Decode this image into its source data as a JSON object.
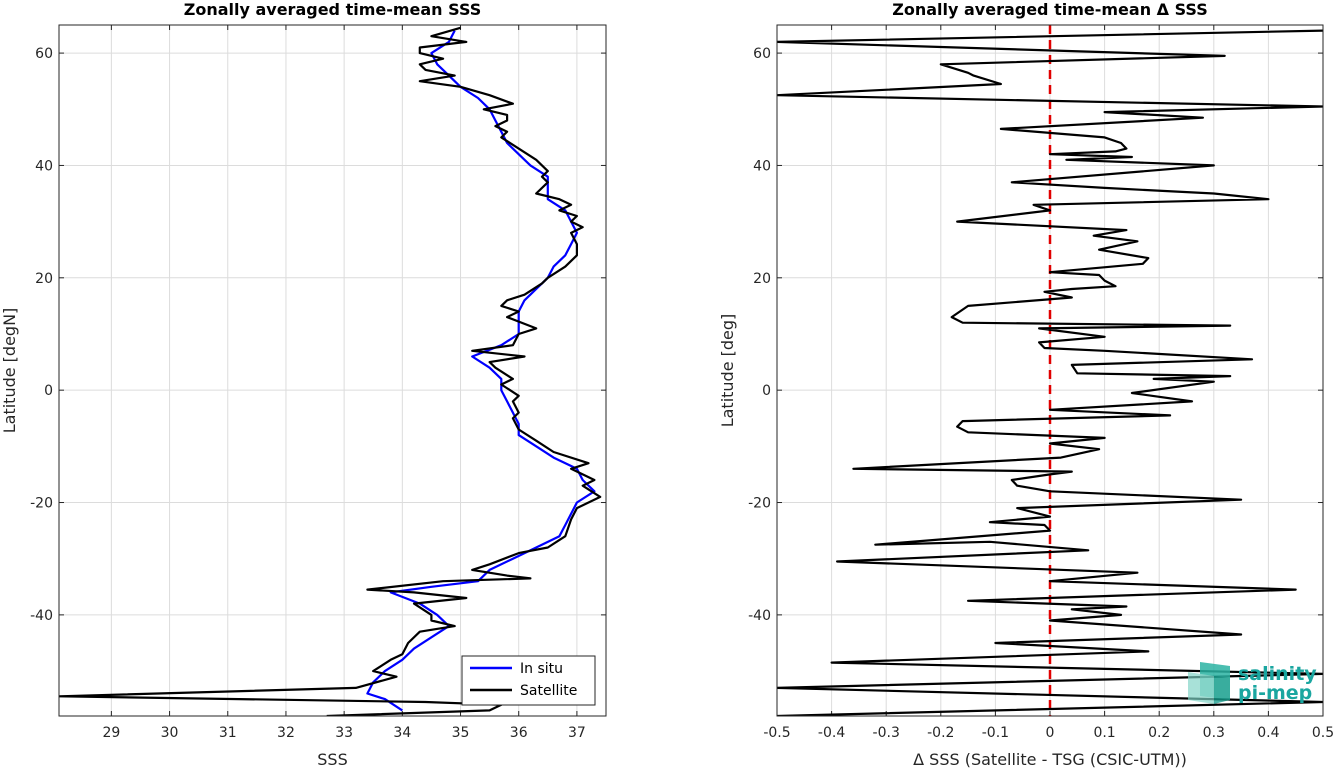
{
  "colors": {
    "insitu": "#0000ff",
    "satellite": "#000000",
    "zero_line": "#e00000",
    "grid": "#dcdcdc",
    "axes": "#262626",
    "logo": "#1aa6a0"
  },
  "logo": {
    "icon": "salinity-pi-mep-logo-icon",
    "line1": "salinity",
    "line2": "pi-mep"
  },
  "chart_data": [
    {
      "type": "line",
      "title": "Zonally averaged time-mean SSS",
      "xlabel": "SSS",
      "ylabel": "Latitude [degN]",
      "xlim": [
        28.1,
        37.5
      ],
      "ylim": [
        -58,
        65
      ],
      "xticks": [
        29,
        30,
        31,
        32,
        33,
        34,
        35,
        36,
        37
      ],
      "yticks": [
        -40,
        -20,
        0,
        20,
        40,
        60
      ],
      "xtick_labels": [
        "29",
        "30",
        "31",
        "32",
        "33",
        "34",
        "35",
        "36",
        "37"
      ],
      "ytick_labels": [
        "-40",
        "-20",
        "0",
        "20",
        "40",
        "60"
      ],
      "grid": true,
      "legend": {
        "position": "bottom-right",
        "entries": [
          "In situ",
          "Satellite"
        ]
      },
      "series": [
        {
          "name": "In situ",
          "color": "#0000ff",
          "points": [
            [
              34.9,
              64
            ],
            [
              34.8,
              62
            ],
            [
              34.5,
              60
            ],
            [
              34.6,
              58
            ],
            [
              34.8,
              56
            ],
            [
              35.0,
              54
            ],
            [
              35.3,
              52
            ],
            [
              35.5,
              50
            ],
            [
              35.6,
              48
            ],
            [
              35.7,
              46
            ],
            [
              35.8,
              44
            ],
            [
              36.0,
              42
            ],
            [
              36.2,
              40
            ],
            [
              36.5,
              38
            ],
            [
              36.5,
              36
            ],
            [
              36.5,
              34
            ],
            [
              36.8,
              32
            ],
            [
              36.9,
              30
            ],
            [
              37.0,
              28
            ],
            [
              36.9,
              26
            ],
            [
              36.8,
              24
            ],
            [
              36.6,
              22
            ],
            [
              36.5,
              20
            ],
            [
              36.3,
              18
            ],
            [
              36.1,
              16
            ],
            [
              36.0,
              14
            ],
            [
              36.0,
              12
            ],
            [
              36.0,
              10
            ],
            [
              35.7,
              8
            ],
            [
              35.2,
              6
            ],
            [
              35.5,
              4
            ],
            [
              35.7,
              2
            ],
            [
              35.7,
              0
            ],
            [
              35.8,
              -2
            ],
            [
              35.9,
              -4
            ],
            [
              36.0,
              -6
            ],
            [
              36.0,
              -8
            ],
            [
              36.3,
              -10
            ],
            [
              36.6,
              -12
            ],
            [
              37.0,
              -14
            ],
            [
              37.1,
              -16
            ],
            [
              37.3,
              -18
            ],
            [
              37.0,
              -20
            ],
            [
              36.9,
              -22
            ],
            [
              36.8,
              -24
            ],
            [
              36.7,
              -26
            ],
            [
              36.3,
              -28
            ],
            [
              35.9,
              -30
            ],
            [
              35.5,
              -32
            ],
            [
              35.3,
              -34
            ],
            [
              34.5,
              -35
            ],
            [
              33.8,
              -36
            ],
            [
              34.3,
              -38
            ],
            [
              34.6,
              -40
            ],
            [
              34.8,
              -42
            ],
            [
              34.5,
              -44
            ],
            [
              34.2,
              -46
            ],
            [
              34.0,
              -48
            ],
            [
              33.7,
              -50
            ],
            [
              33.5,
              -52
            ],
            [
              33.4,
              -54
            ],
            [
              33.7,
              -55
            ],
            [
              34.0,
              -57
            ]
          ]
        },
        {
          "name": "Satellite",
          "color": "#000000",
          "points": [
            [
              35.0,
              64.5
            ],
            [
              34.5,
              63
            ],
            [
              35.1,
              62
            ],
            [
              34.3,
              61
            ],
            [
              34.3,
              60
            ],
            [
              34.7,
              59
            ],
            [
              34.3,
              58
            ],
            [
              34.4,
              57
            ],
            [
              34.9,
              56
            ],
            [
              34.3,
              55
            ],
            [
              35.0,
              54
            ],
            [
              35.5,
              52.5
            ],
            [
              35.9,
              51
            ],
            [
              35.4,
              50
            ],
            [
              35.8,
              49
            ],
            [
              35.8,
              48
            ],
            [
              35.6,
              47
            ],
            [
              35.8,
              46
            ],
            [
              35.7,
              45
            ],
            [
              36.0,
              43
            ],
            [
              36.3,
              41
            ],
            [
              36.5,
              39
            ],
            [
              36.4,
              38
            ],
            [
              36.5,
              37
            ],
            [
              36.3,
              35
            ],
            [
              36.7,
              34
            ],
            [
              36.9,
              33
            ],
            [
              36.7,
              32
            ],
            [
              37.0,
              31
            ],
            [
              36.9,
              30
            ],
            [
              37.1,
              29
            ],
            [
              36.9,
              28
            ],
            [
              37.0,
              26
            ],
            [
              37.0,
              24
            ],
            [
              36.8,
              22
            ],
            [
              36.5,
              20
            ],
            [
              36.4,
              19
            ],
            [
              36.1,
              17
            ],
            [
              35.8,
              16
            ],
            [
              35.7,
              15
            ],
            [
              36.0,
              14
            ],
            [
              35.8,
              13
            ],
            [
              36.3,
              11
            ],
            [
              36.0,
              10
            ],
            [
              35.9,
              8
            ],
            [
              35.2,
              7
            ],
            [
              36.1,
              6
            ],
            [
              35.5,
              5
            ],
            [
              35.6,
              4
            ],
            [
              35.9,
              2
            ],
            [
              35.7,
              1
            ],
            [
              36.0,
              -1
            ],
            [
              35.9,
              -2
            ],
            [
              36.0,
              -4
            ],
            [
              35.9,
              -5
            ],
            [
              36.0,
              -7
            ],
            [
              36.3,
              -9
            ],
            [
              36.6,
              -11
            ],
            [
              37.2,
              -13
            ],
            [
              36.9,
              -14
            ],
            [
              37.3,
              -16
            ],
            [
              37.1,
              -17
            ],
            [
              37.4,
              -19
            ],
            [
              37.0,
              -21
            ],
            [
              36.9,
              -23
            ],
            [
              36.8,
              -26
            ],
            [
              36.5,
              -28
            ],
            [
              36.0,
              -29
            ],
            [
              35.5,
              -31
            ],
            [
              35.2,
              -32
            ],
            [
              35.8,
              -33
            ],
            [
              36.2,
              -33.5
            ],
            [
              34.7,
              -34
            ],
            [
              33.4,
              -35.5
            ],
            [
              34.2,
              -36
            ],
            [
              35.1,
              -37
            ],
            [
              34.2,
              -38
            ],
            [
              34.5,
              -40
            ],
            [
              34.5,
              -41
            ],
            [
              34.9,
              -42
            ],
            [
              34.3,
              -43
            ],
            [
              34.1,
              -45
            ],
            [
              34.0,
              -47
            ],
            [
              33.8,
              -48
            ],
            [
              33.5,
              -50
            ],
            [
              33.9,
              -51
            ],
            [
              33.2,
              -53
            ],
            [
              28.1,
              -54.5
            ],
            [
              34.4,
              -55.5
            ],
            [
              35.7,
              -56
            ],
            [
              35.5,
              -57
            ],
            [
              32.7,
              -58
            ]
          ]
        }
      ]
    },
    {
      "type": "line",
      "title": "Zonally averaged time-mean Δ SSS",
      "xlabel": "Δ SSS (Satellite - TSG (CSIC-UTM))",
      "ylabel": "Latitude [deg]",
      "xlim": [
        -0.5,
        0.5
      ],
      "ylim": [
        -58,
        65
      ],
      "xticks": [
        -0.5,
        -0.4,
        -0.3,
        -0.2,
        -0.1,
        0,
        0.1,
        0.2,
        0.3,
        0.4,
        0.5
      ],
      "yticks": [
        -40,
        -20,
        0,
        20,
        40,
        60
      ],
      "xtick_labels": [
        "-0.5",
        "-0.4",
        "-0.3",
        "-0.2",
        "-0.1",
        "0",
        "0.1",
        "0.2",
        "0.3",
        "0.4",
        "0.5"
      ],
      "ytick_labels": [
        "-40",
        "-20",
        "0",
        "20",
        "40",
        "60"
      ],
      "grid": true,
      "reference_line": {
        "x": 0,
        "style": "dashed",
        "color": "#e00000"
      },
      "series": [
        {
          "name": "",
          "color": "#000000",
          "points": [
            [
              0.5,
              64
            ],
            [
              -0.5,
              62
            ],
            [
              0.32,
              59.5
            ],
            [
              -0.2,
              58
            ],
            [
              -0.15,
              56.5
            ],
            [
              -0.14,
              56
            ],
            [
              -0.09,
              54.5
            ],
            [
              -0.5,
              52.5
            ],
            [
              0.5,
              50.5
            ],
            [
              0.1,
              49.5
            ],
            [
              0.28,
              48.5
            ],
            [
              -0.09,
              46.5
            ],
            [
              0.1,
              45
            ],
            [
              0.13,
              44
            ],
            [
              0.14,
              43
            ],
            [
              0.12,
              42.5
            ],
            [
              0.0,
              42
            ],
            [
              0.15,
              41.5
            ],
            [
              0.03,
              41
            ],
            [
              0.3,
              40
            ],
            [
              -0.07,
              37
            ],
            [
              0.1,
              36
            ],
            [
              0.3,
              35
            ],
            [
              0.4,
              34
            ],
            [
              -0.03,
              33
            ],
            [
              0.0,
              32
            ],
            [
              -0.17,
              30
            ],
            [
              0.14,
              28.5
            ],
            [
              0.08,
              27.5
            ],
            [
              0.16,
              26.5
            ],
            [
              0.09,
              25
            ],
            [
              0.18,
              23.5
            ],
            [
              0.17,
              22.5
            ],
            [
              0.0,
              21
            ],
            [
              0.09,
              20.5
            ],
            [
              0.1,
              19.5
            ],
            [
              0.12,
              18.5
            ],
            [
              0.04,
              18
            ],
            [
              -0.01,
              17.5
            ],
            [
              0.04,
              16.5
            ],
            [
              -0.15,
              15
            ],
            [
              -0.18,
              13
            ],
            [
              -0.16,
              12
            ],
            [
              0.33,
              11.5
            ],
            [
              -0.02,
              11
            ],
            [
              0.1,
              9.5
            ],
            [
              -0.02,
              8.5
            ],
            [
              -0.01,
              7.5
            ],
            [
              0.1,
              7
            ],
            [
              0.37,
              5.5
            ],
            [
              0.04,
              4.5
            ],
            [
              0.05,
              3
            ],
            [
              0.33,
              2.5
            ],
            [
              0.19,
              2
            ],
            [
              0.3,
              1.5
            ],
            [
              0.15,
              -0.5
            ],
            [
              0.26,
              -2
            ],
            [
              0.0,
              -3.5
            ],
            [
              0.22,
              -4.5
            ],
            [
              -0.16,
              -5.5
            ],
            [
              -0.17,
              -6.5
            ],
            [
              -0.15,
              -7.5
            ],
            [
              0.1,
              -8.5
            ],
            [
              0.0,
              -9.5
            ],
            [
              0.09,
              -10.5
            ],
            [
              0.02,
              -12
            ],
            [
              -0.36,
              -14
            ],
            [
              0.04,
              -14.5
            ],
            [
              0.0,
              -15
            ],
            [
              -0.07,
              -16
            ],
            [
              -0.06,
              -17
            ],
            [
              0.0,
              -18
            ],
            [
              0.35,
              -19.5
            ],
            [
              -0.06,
              -21
            ],
            [
              0.0,
              -22.5
            ],
            [
              -0.11,
              -23.5
            ],
            [
              -0.01,
              -24
            ],
            [
              0.0,
              -25
            ],
            [
              -0.32,
              -27.5
            ],
            [
              -0.11,
              -27
            ],
            [
              0.07,
              -28.5
            ],
            [
              -0.39,
              -30.5
            ],
            [
              0.16,
              -32.5
            ],
            [
              0.0,
              -34
            ],
            [
              0.45,
              -35.5
            ],
            [
              -0.15,
              -37.5
            ],
            [
              0.14,
              -38.5
            ],
            [
              0.04,
              -39
            ],
            [
              0.13,
              -40
            ],
            [
              0.0,
              -41
            ],
            [
              0.35,
              -43.5
            ],
            [
              -0.1,
              -45
            ],
            [
              0.18,
              -46.5
            ],
            [
              -0.4,
              -48.5
            ],
            [
              0.5,
              -50.5
            ],
            [
              -0.5,
              -53
            ],
            [
              0.5,
              -55.5
            ],
            [
              -0.5,
              -58
            ]
          ]
        }
      ]
    }
  ]
}
